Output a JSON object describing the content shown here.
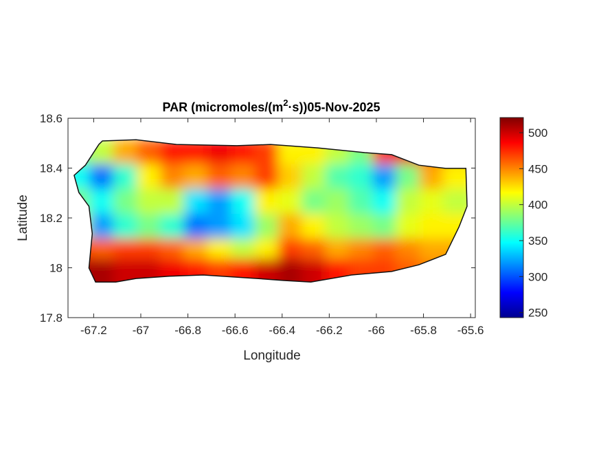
{
  "chart_data": {
    "type": "heatmap",
    "title_main": "PAR (micromoles/(m",
    "title_sup": "2",
    "title_rest": "·s))05-Nov-2025",
    "xlabel": "Longitude",
    "ylabel": "Latitude",
    "xlim": [
      -67.309,
      -65.58
    ],
    "ylim": [
      17.8,
      18.6
    ],
    "xticks": [
      -67.2,
      -67,
      -66.8,
      -66.6,
      -66.4,
      -66.2,
      -66,
      -65.8,
      -65.6
    ],
    "xtick_labels": [
      "-67.2",
      "-67",
      "-66.8",
      "-66.6",
      "-66.4",
      "-66.2",
      "-66",
      "-65.8",
      "-65.6"
    ],
    "yticks": [
      17.8,
      18,
      18.2,
      18.4,
      18.6
    ],
    "ytick_labels": [
      "17.8",
      "18",
      "18.2",
      "18.4",
      "18.6"
    ],
    "colormap": "jet",
    "clim": [
      243,
      521
    ],
    "colorbar_ticks": [
      250,
      300,
      350,
      400,
      450,
      500
    ],
    "colorbar_labels": [
      "250",
      "300",
      "350",
      "400",
      "450",
      "500"
    ],
    "grid_lon": [
      -67.25,
      -67.15,
      -67.05,
      -66.95,
      -66.85,
      -66.75,
      -66.65,
      -66.55,
      -66.45,
      -66.35,
      -66.25,
      -66.15,
      -66.05,
      -65.95,
      -65.85,
      -65.75,
      -65.65
    ],
    "grid_lat": [
      18.45,
      18.35,
      18.25,
      18.15,
      18.05,
      17.97
    ],
    "values": [
      [
        380,
        400,
        440,
        460,
        480,
        480,
        490,
        480,
        470,
        420,
        420,
        400,
        380,
        470,
        490,
        460,
        440
      ],
      [
        350,
        310,
        360,
        420,
        450,
        440,
        460,
        450,
        470,
        430,
        400,
        370,
        360,
        320,
        380,
        440,
        420
      ],
      [
        380,
        350,
        380,
        400,
        400,
        340,
        320,
        350,
        420,
        410,
        380,
        390,
        370,
        350,
        400,
        410,
        400
      ],
      [
        400,
        320,
        360,
        380,
        360,
        310,
        320,
        340,
        390,
        440,
        420,
        400,
        390,
        380,
        410,
        420,
        420
      ],
      [
        470,
        460,
        470,
        470,
        460,
        440,
        420,
        400,
        420,
        470,
        460,
        440,
        450,
        460,
        450,
        440,
        440
      ],
      [
        510,
        510,
        500,
        500,
        490,
        480,
        470,
        480,
        500,
        510,
        500,
        480,
        470,
        470,
        460,
        450,
        450
      ]
    ],
    "island_outline": [
      [
        -67.283,
        18.371
      ],
      [
        -67.235,
        18.412
      ],
      [
        -67.178,
        18.495
      ],
      [
        -67.163,
        18.509
      ],
      [
        -67.02,
        18.514
      ],
      [
        -66.849,
        18.495
      ],
      [
        -66.592,
        18.49
      ],
      [
        -66.449,
        18.495
      ],
      [
        -66.249,
        18.481
      ],
      [
        -66.049,
        18.462
      ],
      [
        -65.935,
        18.454
      ],
      [
        -65.82,
        18.412
      ],
      [
        -65.706,
        18.399
      ],
      [
        -65.62,
        18.399
      ],
      [
        -65.615,
        18.247
      ],
      [
        -65.649,
        18.164
      ],
      [
        -65.706,
        18.054
      ],
      [
        -65.82,
        18.012
      ],
      [
        -65.935,
        17.985
      ],
      [
        -66.106,
        17.971
      ],
      [
        -66.278,
        17.943
      ],
      [
        -66.392,
        17.949
      ],
      [
        -66.506,
        17.957
      ],
      [
        -66.735,
        17.971
      ],
      [
        -66.878,
        17.966
      ],
      [
        -67.02,
        17.957
      ],
      [
        -67.106,
        17.943
      ],
      [
        -67.192,
        17.943
      ],
      [
        -67.22,
        17.999
      ],
      [
        -67.206,
        18.137
      ],
      [
        -67.22,
        18.247
      ],
      [
        -67.263,
        18.302
      ]
    ]
  }
}
